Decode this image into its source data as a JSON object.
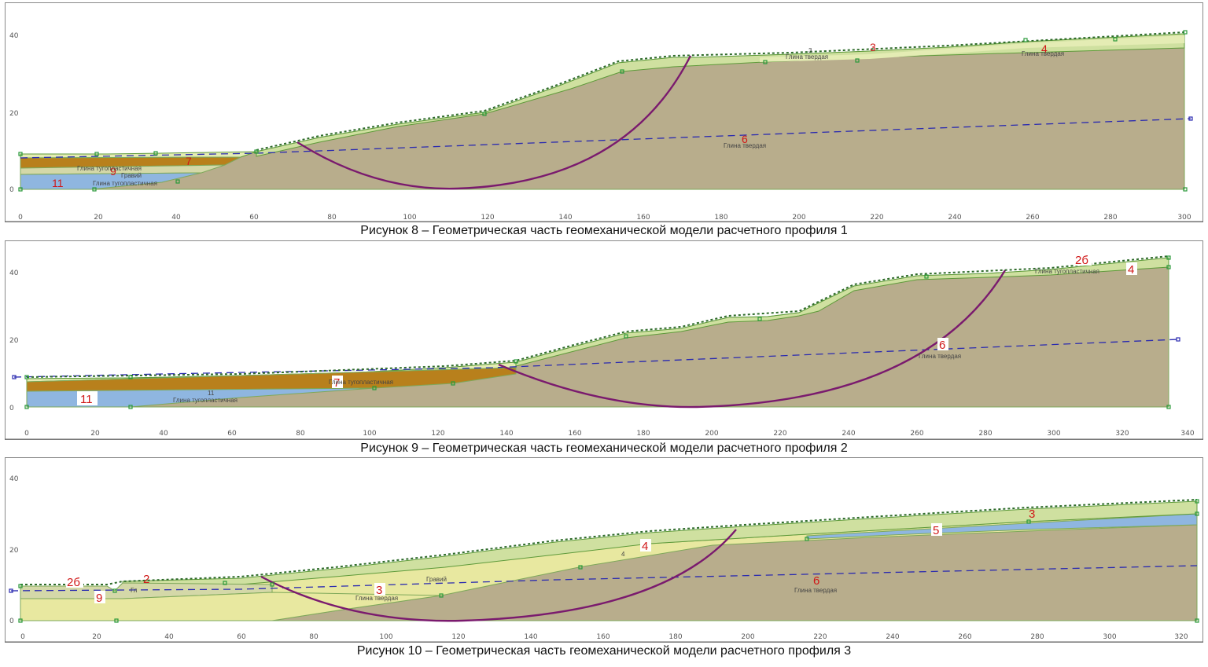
{
  "colors": {
    "clay_hard": "#b8ad8c",
    "surface_green": "#cfe0a0",
    "surface_light": "#e4ecb4",
    "layer_brown": "#b8801c",
    "layer_blue": "#8fb6e0",
    "layer_yellow": "#e8e8a0",
    "slip_curve": "#7a1a6e",
    "water_line": "#2a2ab0",
    "node": "#2a9a3a",
    "label_red": "#d01818"
  },
  "figures": [
    {
      "caption": "Рисунок 8 – Геометрическая часть геомеханической модели расчетного профиля 1",
      "x_ticks": [
        "0",
        "20",
        "40",
        "60",
        "80",
        "100",
        "120",
        "140",
        "160",
        "180",
        "200",
        "220",
        "240",
        "260",
        "280",
        "300"
      ],
      "y_ticks": [
        "0",
        "20",
        "40"
      ],
      "region_numbers": [
        "3",
        "4",
        "6",
        "7",
        "9",
        "11"
      ],
      "soil_labels": [
        "Глина твердая",
        "Глина твердая",
        "Глина тугопластичная",
        "Гравий",
        "Глина тугопластичная",
        "Глина твердая"
      ],
      "tiny_labels": [
        "3",
        "11"
      ]
    },
    {
      "caption": "Рисунок 9 – Геометрическая часть геомеханической модели расчетного профиля 2",
      "x_ticks": [
        "0",
        "20",
        "40",
        "60",
        "80",
        "100",
        "120",
        "140",
        "160",
        "180",
        "200",
        "220",
        "240",
        "260",
        "280",
        "300",
        "320",
        "340"
      ],
      "y_ticks": [
        "0",
        "20",
        "40"
      ],
      "region_numbers": [
        "2б",
        "4",
        "6",
        "7",
        "11"
      ],
      "soil_labels": [
        "Глина тугопластичная",
        "Глина тугопластичная",
        "Глина тугопластичная",
        "Глина твердая"
      ],
      "tiny_labels": [
        "11"
      ]
    },
    {
      "caption": "Рисунок 10 – Геометрическая часть геомеханической модели расчетного профиля 3",
      "x_ticks": [
        "0",
        "20",
        "40",
        "60",
        "80",
        "100",
        "120",
        "140",
        "160",
        "180",
        "200",
        "220",
        "240",
        "260",
        "280",
        "300",
        "320"
      ],
      "y_ticks": [
        "0",
        "20",
        "40"
      ],
      "region_numbers": [
        "2б",
        "2",
        "9",
        "3",
        "4",
        "5",
        "3",
        "6"
      ],
      "soil_labels": [
        "Глина твердая",
        "Гравий",
        "Глина твердая"
      ],
      "tiny_labels": [
        "Гл",
        "4"
      ]
    }
  ]
}
